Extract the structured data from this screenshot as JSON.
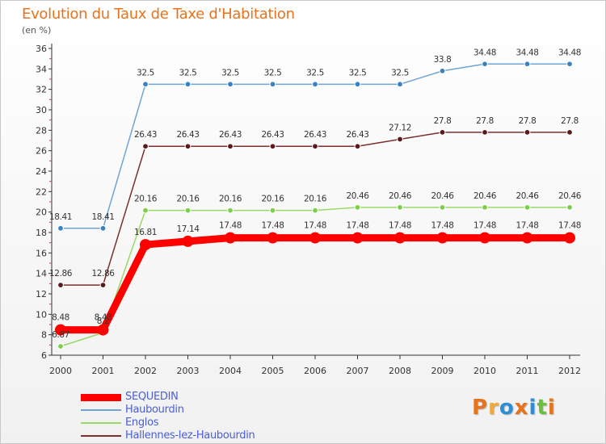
{
  "header": {
    "title": "Evolution du Taux de Taxe d'Habitation",
    "subtitle": "(en %)"
  },
  "logo": {
    "text": "Proxiti",
    "colors": [
      "#e8731e",
      "#f2a93b",
      "#2a8fd6",
      "#e8731e",
      "#2a8fd6",
      "#6cbf3a",
      "#e8731e"
    ]
  },
  "chart_data": {
    "type": "line",
    "title": "Evolution du Taux de Taxe d'Habitation",
    "subtitle": "(en %)",
    "xlabel": "",
    "ylabel": "",
    "ylim": [
      6,
      36
    ],
    "yticks": [
      6,
      8,
      10,
      12,
      14,
      16,
      18,
      20,
      22,
      24,
      26,
      28,
      30,
      32,
      34,
      36
    ],
    "grid": false,
    "legend_position": "bottom-left",
    "x": [
      "2000",
      "2001",
      "2002",
      "2003",
      "2004",
      "2005",
      "2006",
      "2007",
      "2008",
      "2009",
      "2010",
      "2011",
      "2012"
    ],
    "series": [
      {
        "name": "SEQUEDIN",
        "color": "#ff0000",
        "emphasis": true,
        "values": [
          8.48,
          8.48,
          16.81,
          17.14,
          17.48,
          17.48,
          17.48,
          17.48,
          17.48,
          17.48,
          17.48,
          17.48,
          17.48
        ],
        "labels": [
          "8.48",
          "8.48",
          "16.81",
          "17.14",
          "17.48",
          "17.48",
          "17.48",
          "17.48",
          "17.48",
          "17.48",
          "17.48",
          "17.48",
          "17.48"
        ]
      },
      {
        "name": "Haubourdin",
        "color": "#6fa4d4",
        "marker": "#3b82c4",
        "values": [
          18.41,
          18.41,
          32.5,
          32.5,
          32.5,
          32.5,
          32.5,
          32.5,
          32.5,
          33.8,
          34.48,
          34.48,
          34.48
        ],
        "labels": [
          "18.41",
          "18.41",
          "32.5",
          "32.5",
          "32.5",
          "32.5",
          "32.5",
          "32.5",
          "32.5",
          "33.8",
          "34.48",
          "34.48",
          "34.48"
        ]
      },
      {
        "name": "Englos",
        "color": "#9ad86a",
        "marker": "#7bcf4a",
        "values": [
          6.87,
          8.2,
          20.16,
          20.16,
          20.16,
          20.16,
          20.16,
          20.46,
          20.46,
          20.46,
          20.46,
          20.46,
          20.46
        ],
        "labels": [
          "6.87",
          "8.2",
          "20.16",
          "20.16",
          "20.16",
          "20.16",
          "20.16",
          "20.46",
          "20.46",
          "20.46",
          "20.46",
          "20.46",
          "20.46"
        ]
      },
      {
        "name": "Hallennes-lez-Haubourdin",
        "color": "#7a3030",
        "marker": "#5a1a1a",
        "values": [
          12.86,
          12.86,
          26.43,
          26.43,
          26.43,
          26.43,
          26.43,
          26.43,
          27.12,
          27.8,
          27.8,
          27.8,
          27.8
        ],
        "labels": [
          "12.86",
          "12.86",
          "26.43",
          "26.43",
          "26.43",
          "26.43",
          "26.43",
          "26.43",
          "27.12",
          "27.8",
          "27.8",
          "27.8",
          "27.8"
        ]
      }
    ]
  }
}
